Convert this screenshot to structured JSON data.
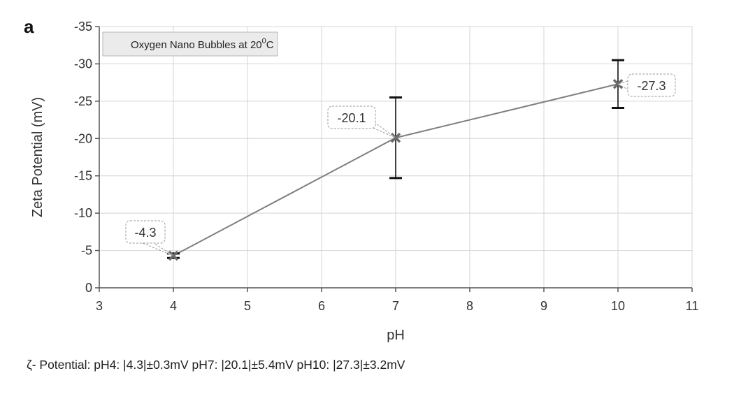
{
  "chart_data": {
    "type": "line",
    "panel_label": "a",
    "xlabel": "pH",
    "ylabel": "Zeta Potential (mV)",
    "xlim": [
      3,
      11
    ],
    "ylim": [
      0,
      -35
    ],
    "x_ticks": [
      3,
      4,
      5,
      6,
      7,
      8,
      9,
      10,
      11
    ],
    "y_ticks": [
      0,
      -5,
      -10,
      -15,
      -20,
      -25,
      -30,
      -35
    ],
    "x_tick_labels": [
      "3",
      "4",
      "5",
      "6",
      "7",
      "8",
      "9",
      "10",
      "11"
    ],
    "y_tick_labels": [
      "0",
      "-5",
      "-10",
      "-15",
      "-20",
      "-25",
      "-30",
      "-35"
    ],
    "grid": true,
    "legend": {
      "text_main": "Oxygen Nano Bubbles at 20",
      "superscript": "0",
      "text_tail": "C",
      "placement": "top-left"
    },
    "series": [
      {
        "x": [
          4,
          7,
          10
        ],
        "y": [
          -4.3,
          -20.1,
          -27.3
        ],
        "error": [
          0.3,
          5.4,
          3.2
        ],
        "data_labels": [
          "-4.3",
          "-20.1",
          "-27.3"
        ],
        "color": "#7f7f7f"
      }
    ],
    "footnote": "ζ- Potential: pH4: |4.3|±0.3mV    pH7: |20.1|±5.4mV    pH10: |27.3|±3.2mV"
  }
}
